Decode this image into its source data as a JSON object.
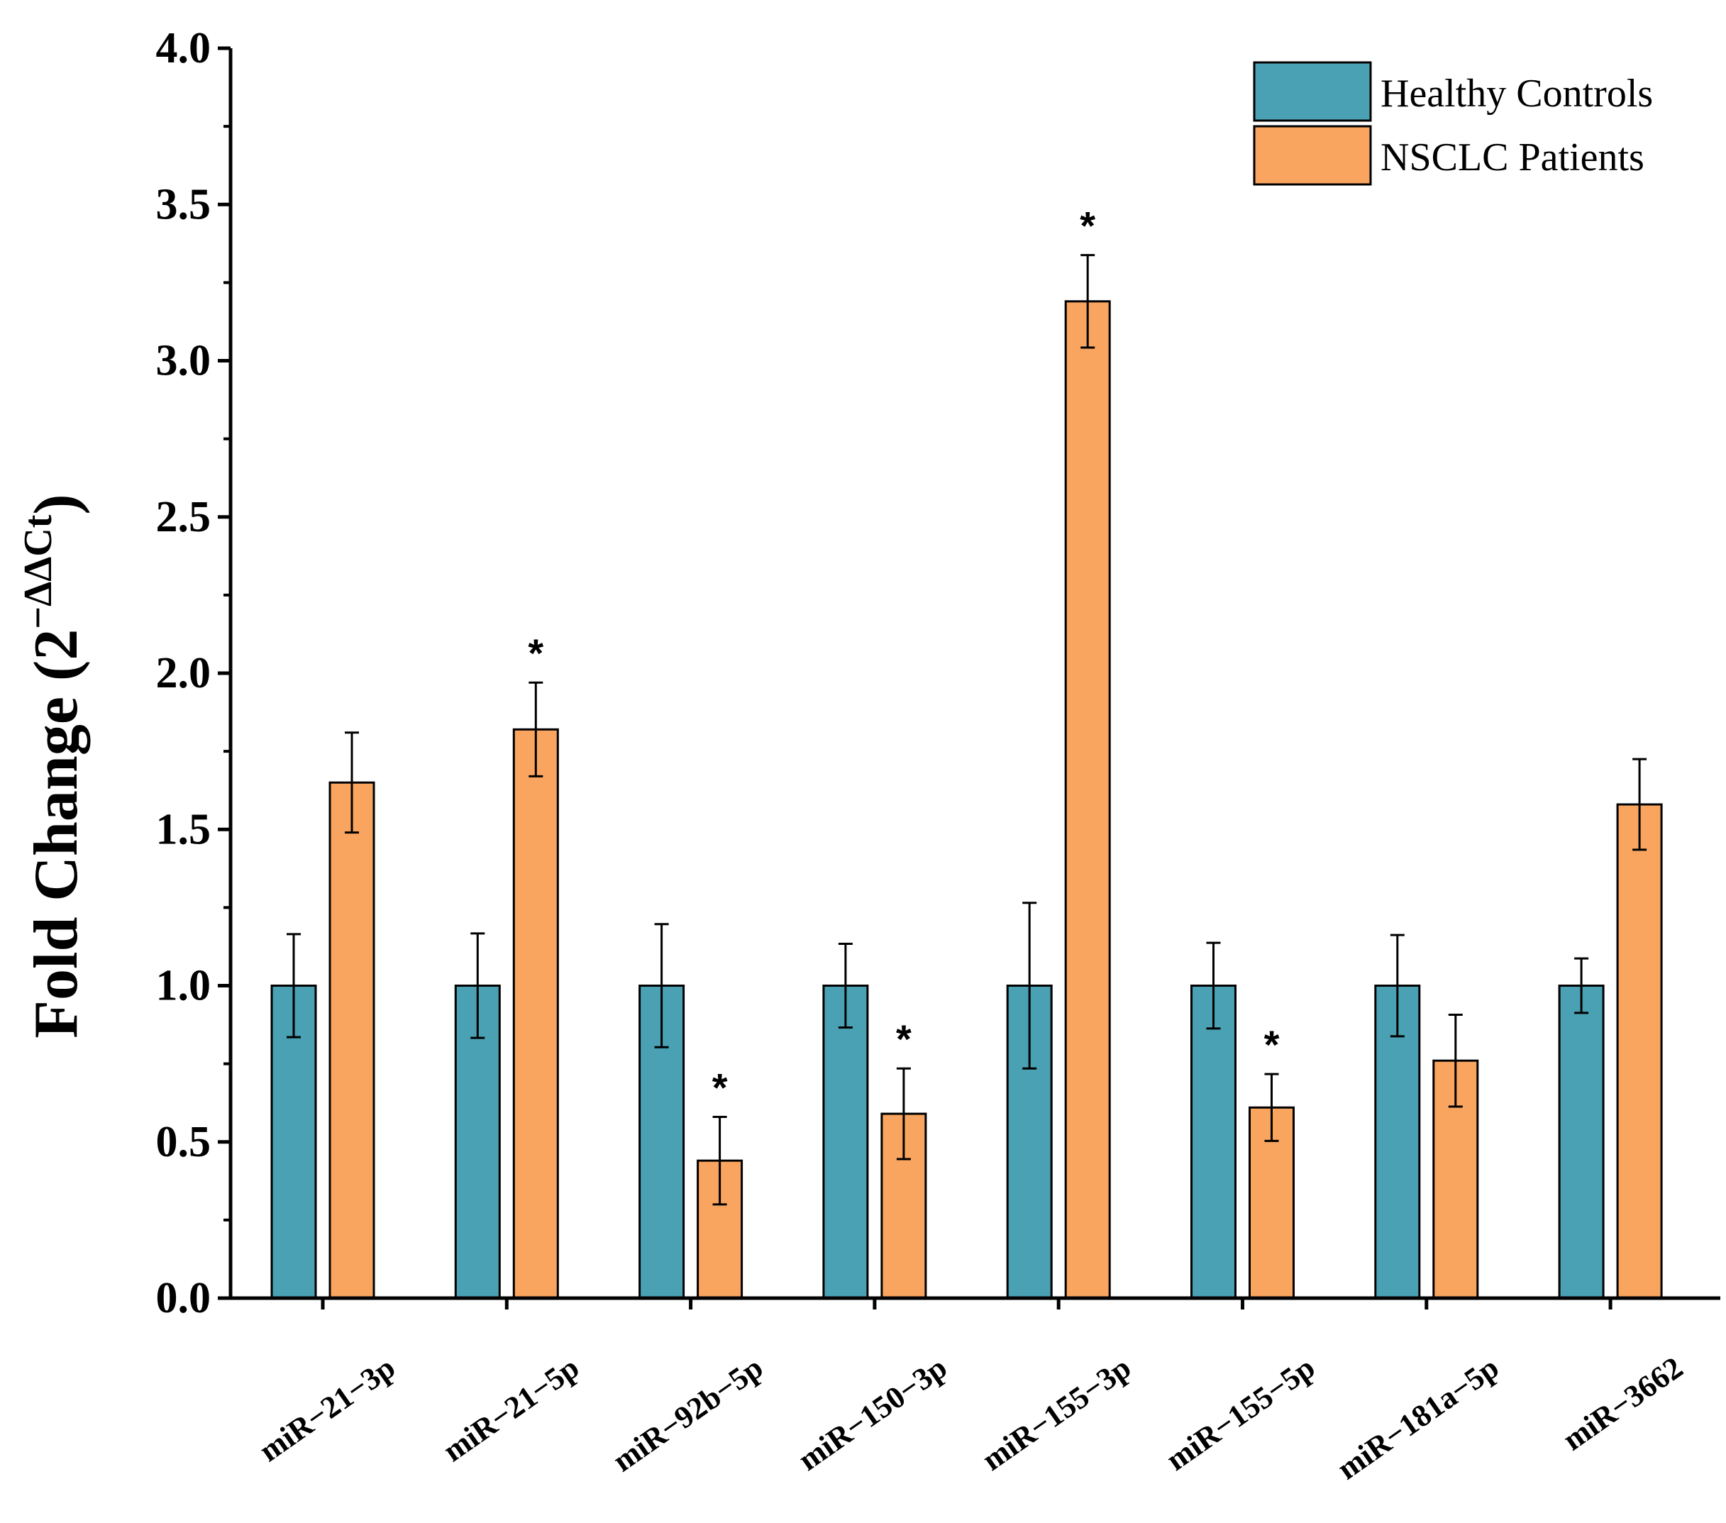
{
  "chart_data": {
    "type": "bar",
    "title": "",
    "xlabel": "",
    "ylabel": {
      "text": "Fold Change (2",
      "superscript": "−ΔΔCt",
      "close": ")"
    },
    "ylim": [
      0,
      4.0
    ],
    "y_ticks": [
      "0.0",
      "0.5",
      "1.0",
      "1.5",
      "2.0",
      "2.5",
      "3.0",
      "3.5",
      "4.0"
    ],
    "categories": [
      "miR−21−3p",
      "miR−21−5p",
      "miR−92b−5p",
      "miR−150−3p",
      "miR−155−3p",
      "miR−155−5p",
      "miR−181a−5p",
      "miR−3662"
    ],
    "series": [
      {
        "name": "Healthy Controls",
        "color": "#4aa1b4",
        "values": [
          1.0,
          1.0,
          1.0,
          1.0,
          1.0,
          1.0,
          1.0,
          1.0
        ],
        "errors": [
          0.165,
          0.167,
          0.197,
          0.134,
          0.265,
          0.137,
          0.162,
          0.087
        ]
      },
      {
        "name": "NSCLC Patients",
        "color": "#f9a560",
        "values": [
          1.65,
          1.82,
          0.44,
          0.59,
          3.19,
          0.61,
          0.76,
          1.58
        ],
        "errors": [
          0.16,
          0.15,
          0.14,
          0.145,
          0.148,
          0.107,
          0.147,
          0.145
        ],
        "significance": [
          "",
          "*",
          "*",
          "*",
          "*",
          "*",
          "",
          ""
        ]
      }
    ],
    "legend": {
      "position": "top-right"
    },
    "grid": false
  }
}
